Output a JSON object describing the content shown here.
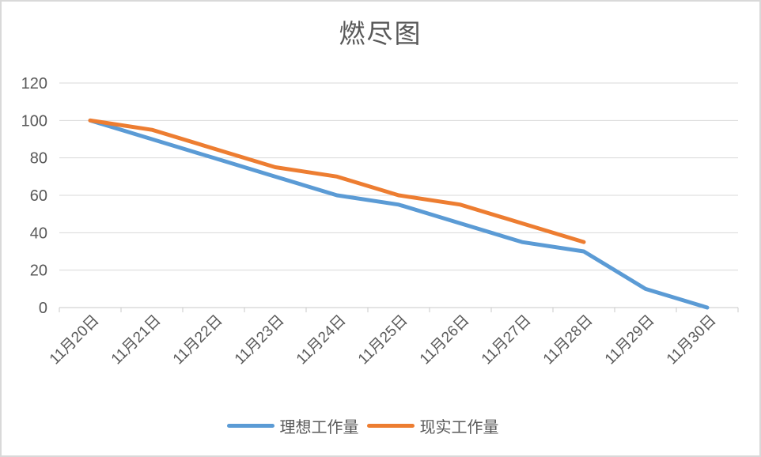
{
  "chart_data": {
    "type": "line",
    "title": "燃尽图",
    "categories": [
      "11月20日",
      "11月21日",
      "11月22日",
      "11月23日",
      "11月24日",
      "11月25日",
      "11月26日",
      "11月27日",
      "11月28日",
      "11月29日",
      "11月30日"
    ],
    "series": [
      {
        "name": "理想工作量",
        "color": "#5B9BD5",
        "values": [
          100,
          90,
          80,
          70,
          60,
          55,
          45,
          35,
          30,
          10,
          0
        ]
      },
      {
        "name": "现实工作量",
        "color": "#ED7D31",
        "values": [
          100,
          95,
          85,
          75,
          70,
          60,
          55,
          45,
          35,
          null,
          null
        ]
      }
    ],
    "xlabel": "",
    "ylabel": "",
    "ylim": [
      0,
      120
    ],
    "yticks": [
      0,
      20,
      40,
      60,
      80,
      100,
      120
    ],
    "grid": true,
    "legend_position": "bottom",
    "styles": {
      "text_color": "#595959",
      "gridline_color": "#D9D9D9",
      "axis_color": "#C9C9C9",
      "background": "#FFFFFF",
      "border_color": "#D9D9D9"
    }
  }
}
